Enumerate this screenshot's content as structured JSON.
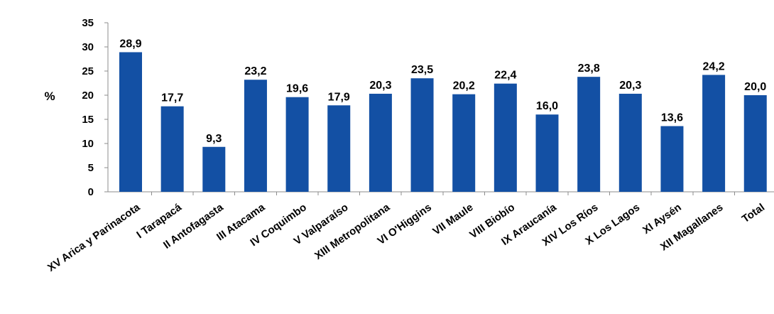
{
  "chart_data": {
    "type": "bar",
    "title": "",
    "xlabel": "",
    "ylabel": "%",
    "ylim": [
      0,
      35
    ],
    "yticks": [
      0,
      5,
      10,
      15,
      20,
      25,
      30,
      35
    ],
    "grid": false,
    "legend": "none",
    "bar_color": "#1350A4",
    "categories": [
      "XV Arica y Parinacota",
      "I Tarapacá",
      "II Antofagasta",
      "III Atacama",
      "IV Coquimbo",
      "V Valparaíso",
      "XIII Metropolitana",
      "VI O'Higgins",
      "VII Maule",
      "VIII Biobío",
      "IX Araucanía",
      "XIV Los Ríos",
      "X Los Lagos",
      "XI Aysén",
      "XII Magallanes",
      "Total"
    ],
    "values": [
      28.9,
      17.7,
      9.3,
      23.2,
      19.6,
      17.9,
      20.3,
      23.5,
      20.2,
      22.4,
      16.0,
      23.8,
      20.3,
      13.6,
      24.2,
      20.0
    ],
    "data_labels": [
      "28,9",
      "17,7",
      "9,3",
      "23,2",
      "19,6",
      "17,9",
      "20,3",
      "23,5",
      "20,2",
      "22,4",
      "16,0",
      "23,8",
      "20,3",
      "13,6",
      "24,2",
      "20,0"
    ]
  }
}
